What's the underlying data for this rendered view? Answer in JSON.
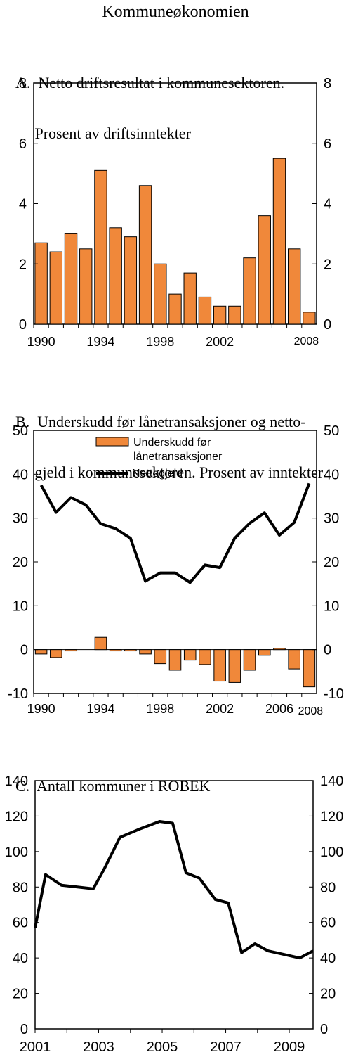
{
  "title": "Kommuneøkonomien",
  "chart_data": [
    {
      "type": "bar",
      "panel": "A.",
      "title_lines": [
        "A.  Netto driftsresultat i kommunesektoren.",
        "     Prosent av driftsinntekter"
      ],
      "x": [
        1990,
        1991,
        1992,
        1993,
        1994,
        1995,
        1996,
        1997,
        1998,
        1999,
        2000,
        2001,
        2002,
        2003,
        2004,
        2005,
        2006,
        2007,
        2008
      ],
      "values": [
        2.7,
        2.4,
        3.0,
        2.5,
        5.1,
        3.2,
        2.9,
        4.6,
        2.0,
        1.0,
        1.7,
        0.9,
        0.6,
        0.6,
        2.2,
        3.6,
        5.5,
        2.5,
        0.4
      ],
      "ylim": [
        0,
        8
      ],
      "yticks": [
        0,
        2,
        4,
        6,
        8
      ],
      "xtick_labels": [
        "1990",
        "1994",
        "1998",
        "2002"
      ],
      "xtick_small": "2008",
      "color": "#f0883a"
    },
    {
      "type": "bar+line",
      "panel": "B.",
      "title_lines": [
        "B.  Underskudd før lånetransaksjoner og netto-",
        "     gjeld i kommunesektoren. Prosent av inntekter"
      ],
      "x": [
        1990,
        1991,
        1992,
        1993,
        1994,
        1995,
        1996,
        1997,
        1998,
        1999,
        2000,
        2001,
        2002,
        2003,
        2004,
        2005,
        2006,
        2007,
        2008
      ],
      "series": [
        {
          "name": "Underskudd før lånetransaksjoner",
          "kind": "bar",
          "values": [
            -1.0,
            -1.8,
            -0.3,
            0.0,
            2.8,
            -0.3,
            -0.3,
            -1.0,
            -3.2,
            -4.7,
            -2.4,
            -3.4,
            -7.2,
            -7.5,
            -4.7,
            -1.3,
            0.3,
            -4.4,
            -8.5
          ]
        },
        {
          "name": "Nettogjeld",
          "kind": "line",
          "values": [
            37.5,
            31.3,
            34.7,
            33.0,
            28.7,
            27.6,
            25.4,
            15.6,
            17.5,
            17.5,
            15.3,
            19.3,
            18.7,
            25.4,
            28.8,
            31.2,
            26.1,
            29.0,
            37.9
          ]
        }
      ],
      "legend": [
        "Underskudd før",
        "lånetransaksjoner",
        "Nettogjeld"
      ],
      "ylim": [
        -10,
        50
      ],
      "yticks": [
        -10,
        0,
        10,
        20,
        30,
        40,
        50
      ],
      "xtick_labels": [
        "1990",
        "1994",
        "1998",
        "2002",
        "2006"
      ],
      "xtick_small": "2008",
      "color": "#f0883a"
    },
    {
      "type": "line",
      "panel": "C.",
      "title_lines": [
        "C.  Antall kommuner i ROBEK"
      ],
      "x": [
        2001.0,
        2001.33,
        2001.83,
        2002.33,
        2002.83,
        2003.17,
        2003.67,
        2004.33,
        2004.92,
        2005.33,
        2005.75,
        2006.17,
        2006.67,
        2007.08,
        2007.5,
        2007.92,
        2008.33,
        2008.83,
        2009.33,
        2009.75
      ],
      "values": [
        57,
        87,
        81,
        80,
        79,
        90,
        108,
        113,
        117,
        116,
        88,
        85,
        73,
        71,
        43,
        48,
        44,
        42,
        40,
        44
      ],
      "xlim": [
        2001,
        2009.75
      ],
      "ylim": [
        0,
        140
      ],
      "yticks": [
        0,
        20,
        40,
        60,
        80,
        100,
        120,
        140
      ],
      "xtick_labels": [
        "2001",
        "2003",
        "2005",
        "2007",
        "2009"
      ]
    }
  ]
}
